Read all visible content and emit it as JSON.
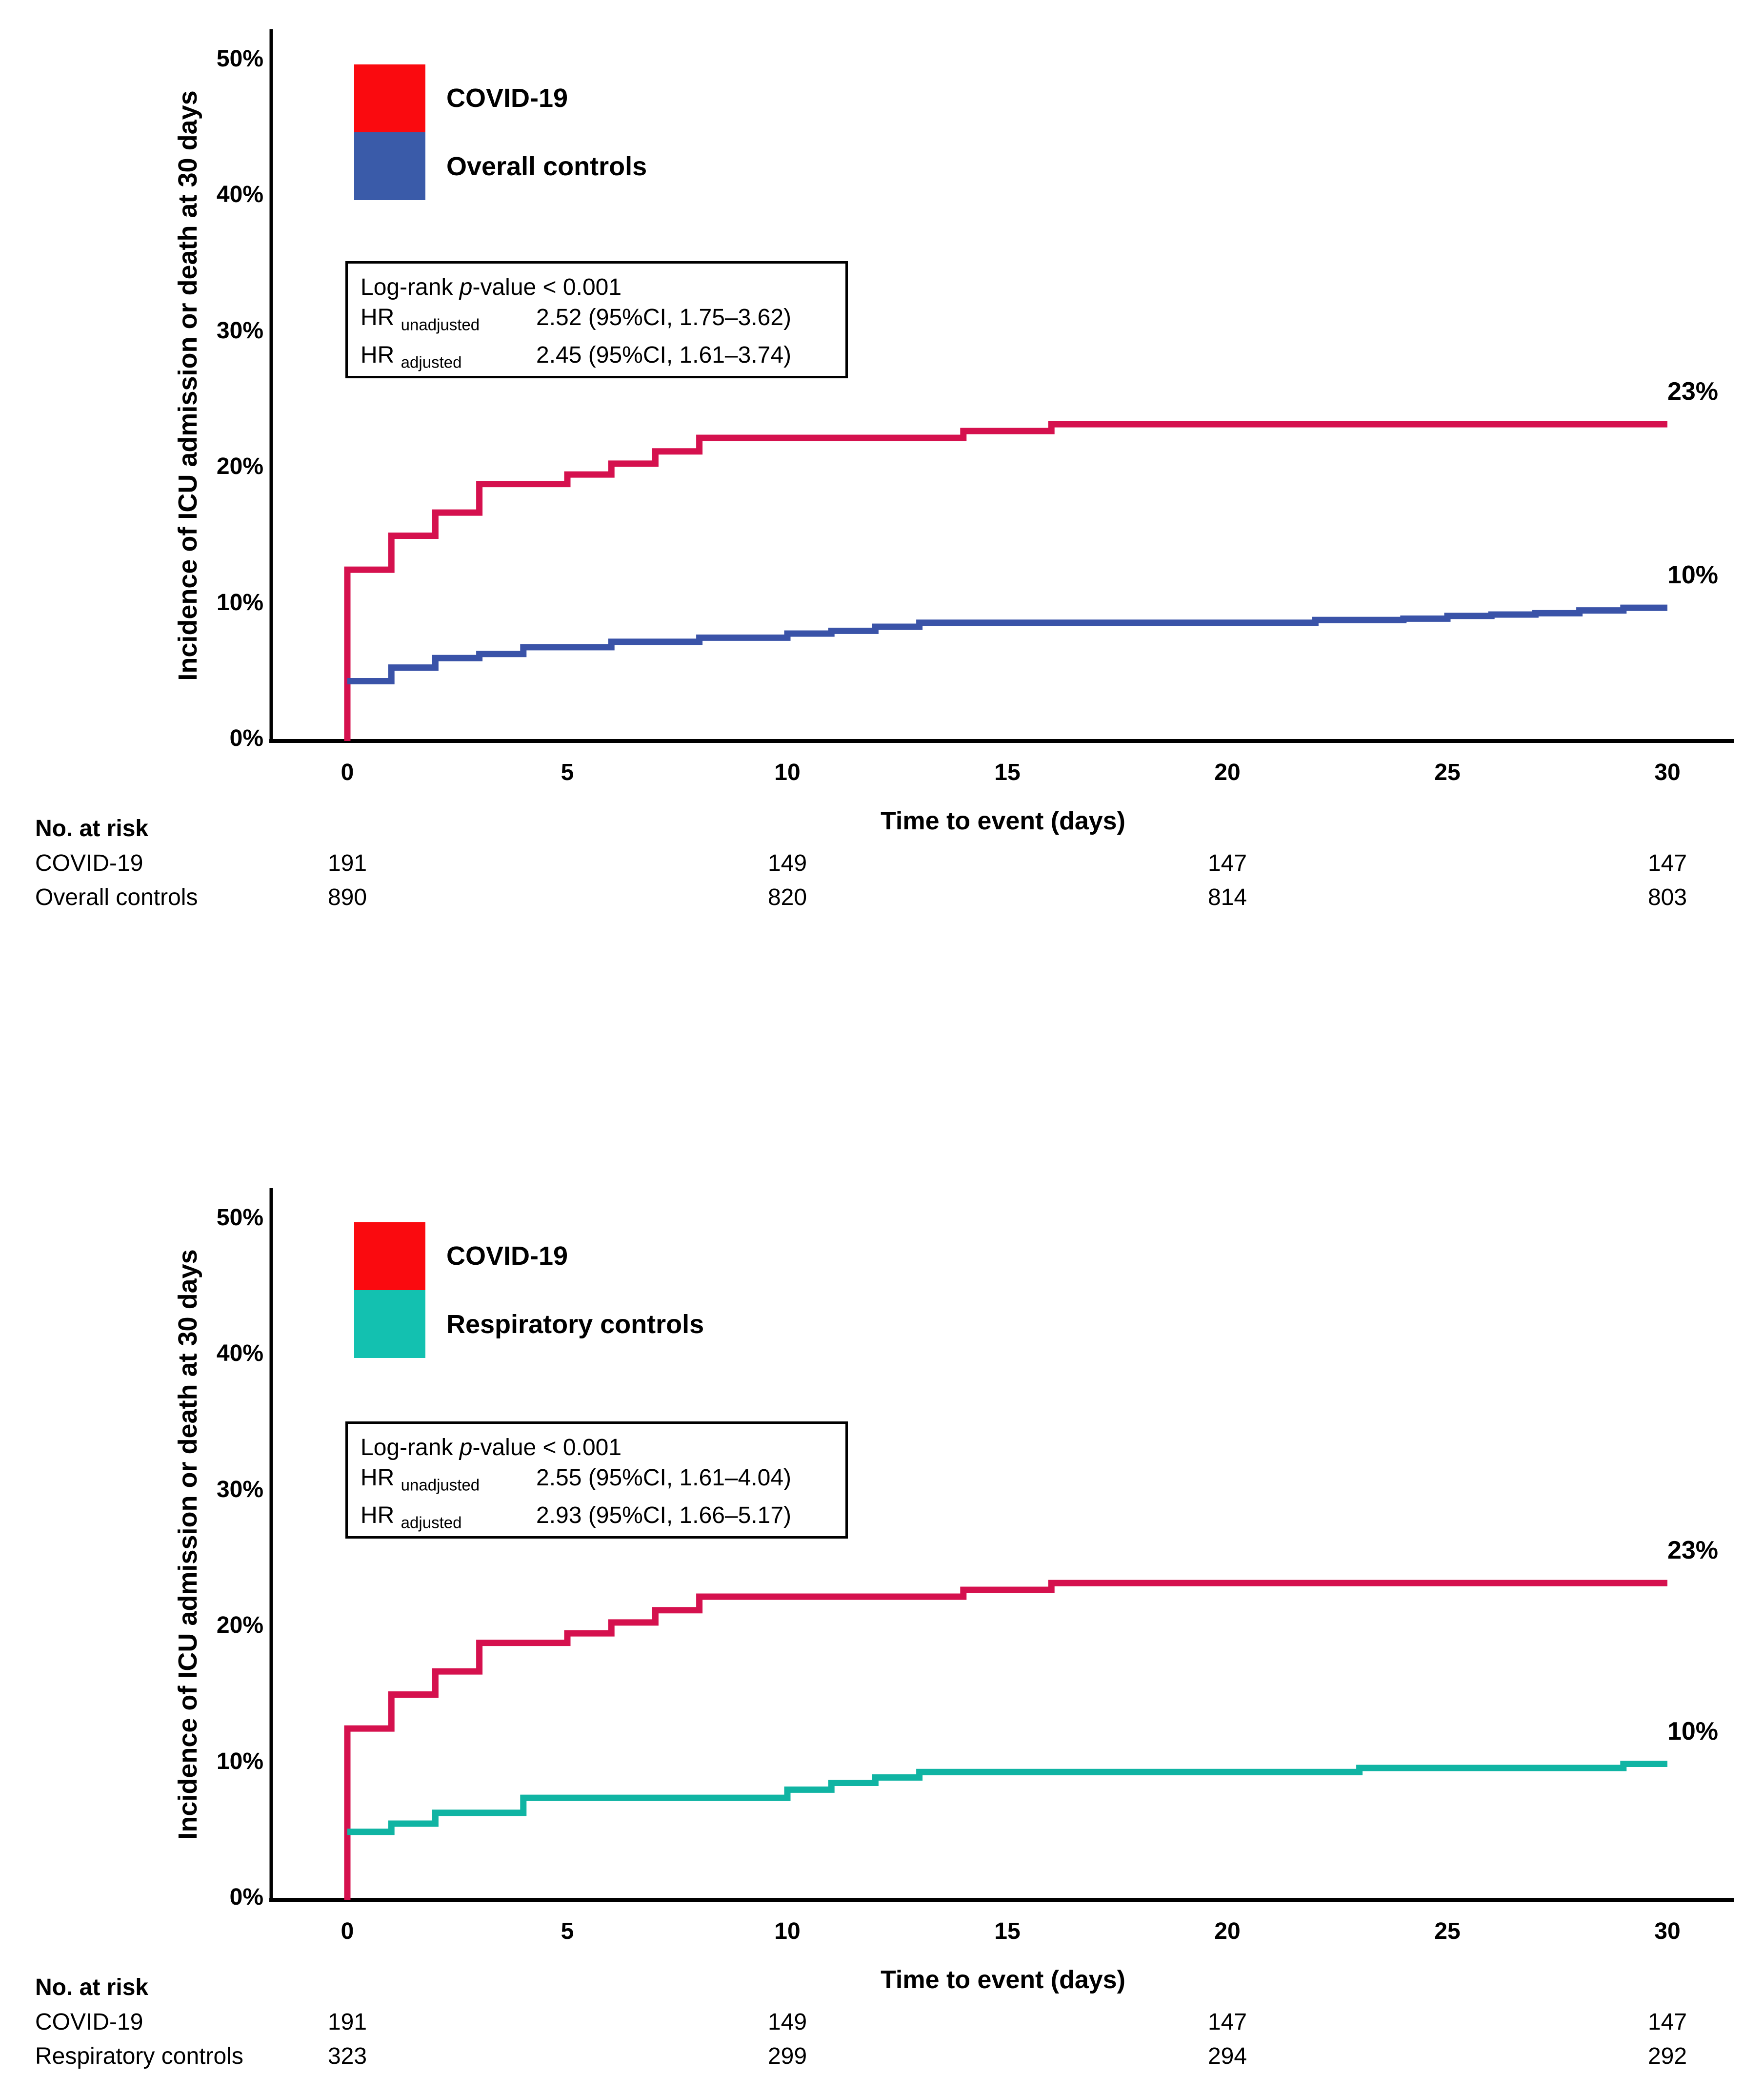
{
  "page": {
    "background": "#FFFFFF"
  },
  "panels": [
    {
      "y_axis_label": "Incidence of ICU admission or death at 30 days",
      "x_axis_label": "Time to event (days)",
      "y_ticks": [
        "0%",
        "10%",
        "20%",
        "30%",
        "40%",
        "50%"
      ],
      "x_ticks": [
        "0",
        "5",
        "10",
        "15",
        "20",
        "25",
        "30"
      ],
      "legend": [
        {
          "label": "COVID-19",
          "color": "#FA0A0F"
        },
        {
          "label": "Overall controls",
          "color": "#3A5BA9"
        }
      ],
      "stats": {
        "logrank_prefix": "Log-rank ",
        "p": "p",
        "logrank_suffix": "-value < 0.001",
        "rows": [
          {
            "label": "HR",
            "sub": "unadjusted",
            "value": "2.52 (95%CI, 1.75–3.62)"
          },
          {
            "label": "HR",
            "sub": "adjusted",
            "value": "2.45 (95%CI, 1.61–3.74)"
          }
        ]
      },
      "risk_table": {
        "header": "No. at risk",
        "rows": [
          {
            "label": "COVID-19",
            "values": [
              "191",
              "149",
              "147",
              "147"
            ]
          },
          {
            "label": "Overall controls",
            "values": [
              "890",
              "820",
              "814",
              "803"
            ]
          }
        ]
      }
    },
    {
      "y_axis_label": "Incidence of ICU admission or death at 30 days",
      "x_axis_label": "Time to event (days)",
      "y_ticks": [
        "0%",
        "10%",
        "20%",
        "30%",
        "40%",
        "50%"
      ],
      "x_ticks": [
        "0",
        "5",
        "10",
        "15",
        "20",
        "25",
        "30"
      ],
      "legend": [
        {
          "label": "COVID-19",
          "color": "#FA0A0F"
        },
        {
          "label": "Respiratory controls",
          "color": "#13C1B0"
        }
      ],
      "stats": {
        "logrank_prefix": "Log-rank ",
        "p": "p",
        "logrank_suffix": "-value < 0.001",
        "rows": [
          {
            "label": "HR",
            "sub": "unadjusted",
            "value": "2.55 (95%CI, 1.61–4.04)"
          },
          {
            "label": "HR",
            "sub": "adjusted",
            "value": "2.93 (95%CI, 1.66–5.17)"
          }
        ]
      },
      "risk_table": {
        "header": "No. at risk",
        "rows": [
          {
            "label": "COVID-19",
            "values": [
              "191",
              "149",
              "147",
              "147"
            ]
          },
          {
            "label": "Respiratory controls",
            "values": [
              "323",
              "299",
              "294",
              "292"
            ]
          }
        ]
      }
    }
  ],
  "chart_data": [
    {
      "type": "line",
      "line_style": "step",
      "title": "",
      "xlabel": "Time to event (days)",
      "ylabel": "Incidence of ICU admission or death at 30 days",
      "xlim": [
        0,
        30
      ],
      "ylim": [
        0,
        50
      ],
      "x_ticks": [
        0,
        5,
        10,
        15,
        20,
        25,
        30
      ],
      "y_ticks_pct": [
        0,
        10,
        20,
        30,
        40,
        50
      ],
      "grid": false,
      "legend_position": "inside-top-left",
      "series": [
        {
          "name": "COVID-19",
          "color": "#D5114E",
          "starts_from_zero": true,
          "end_day": 30,
          "end_label": "23%",
          "points": [
            [
              0,
              12.6
            ],
            [
              1,
              15.1
            ],
            [
              2,
              16.8
            ],
            [
              3,
              18.9
            ],
            [
              5,
              19.6
            ],
            [
              6,
              20.4
            ],
            [
              7,
              21.3
            ],
            [
              8,
              22.3
            ],
            [
              14,
              22.8
            ],
            [
              16,
              23.3
            ]
          ]
        },
        {
          "name": "Overall controls",
          "color": "#3A53A8",
          "starts_from_zero": false,
          "end_day": 30,
          "end_label": "10%",
          "points": [
            [
              0,
              4.4
            ],
            [
              1,
              5.4
            ],
            [
              2,
              6.1
            ],
            [
              3,
              6.4
            ],
            [
              4,
              6.9
            ],
            [
              6,
              7.3
            ],
            [
              8,
              7.6
            ],
            [
              10,
              7.9
            ],
            [
              11,
              8.1
            ],
            [
              12,
              8.4
            ],
            [
              13,
              8.7
            ],
            [
              22,
              8.9
            ],
            [
              24,
              9.0
            ],
            [
              25,
              9.2
            ],
            [
              26,
              9.3
            ],
            [
              27,
              9.4
            ],
            [
              28,
              9.6
            ],
            [
              29,
              9.8
            ]
          ]
        }
      ]
    },
    {
      "type": "line",
      "line_style": "step",
      "title": "",
      "xlabel": "Time to event (days)",
      "ylabel": "Incidence of ICU admission or death at 30 days",
      "xlim": [
        0,
        30
      ],
      "ylim": [
        0,
        50
      ],
      "x_ticks": [
        0,
        5,
        10,
        15,
        20,
        25,
        30
      ],
      "y_ticks_pct": [
        0,
        10,
        20,
        30,
        40,
        50
      ],
      "grid": false,
      "legend_position": "inside-top-left",
      "series": [
        {
          "name": "COVID-19",
          "color": "#D5114E",
          "starts_from_zero": true,
          "end_day": 30,
          "end_label": "23%",
          "points": [
            [
              0,
              12.6
            ],
            [
              1,
              15.1
            ],
            [
              2,
              16.8
            ],
            [
              3,
              18.9
            ],
            [
              5,
              19.6
            ],
            [
              6,
              20.4
            ],
            [
              7,
              21.3
            ],
            [
              8,
              22.3
            ],
            [
              14,
              22.8
            ],
            [
              16,
              23.3
            ]
          ]
        },
        {
          "name": "Respiratory controls",
          "color": "#10B4A3",
          "starts_from_zero": false,
          "end_day": 30,
          "end_label": "10%",
          "points": [
            [
              0,
              5.0
            ],
            [
              1,
              5.6
            ],
            [
              2,
              6.4
            ],
            [
              4,
              7.5
            ],
            [
              10,
              8.1
            ],
            [
              11,
              8.6
            ],
            [
              12,
              9.0
            ],
            [
              13,
              9.4
            ],
            [
              23,
              9.7
            ],
            [
              29,
              10.0
            ]
          ]
        }
      ]
    }
  ]
}
